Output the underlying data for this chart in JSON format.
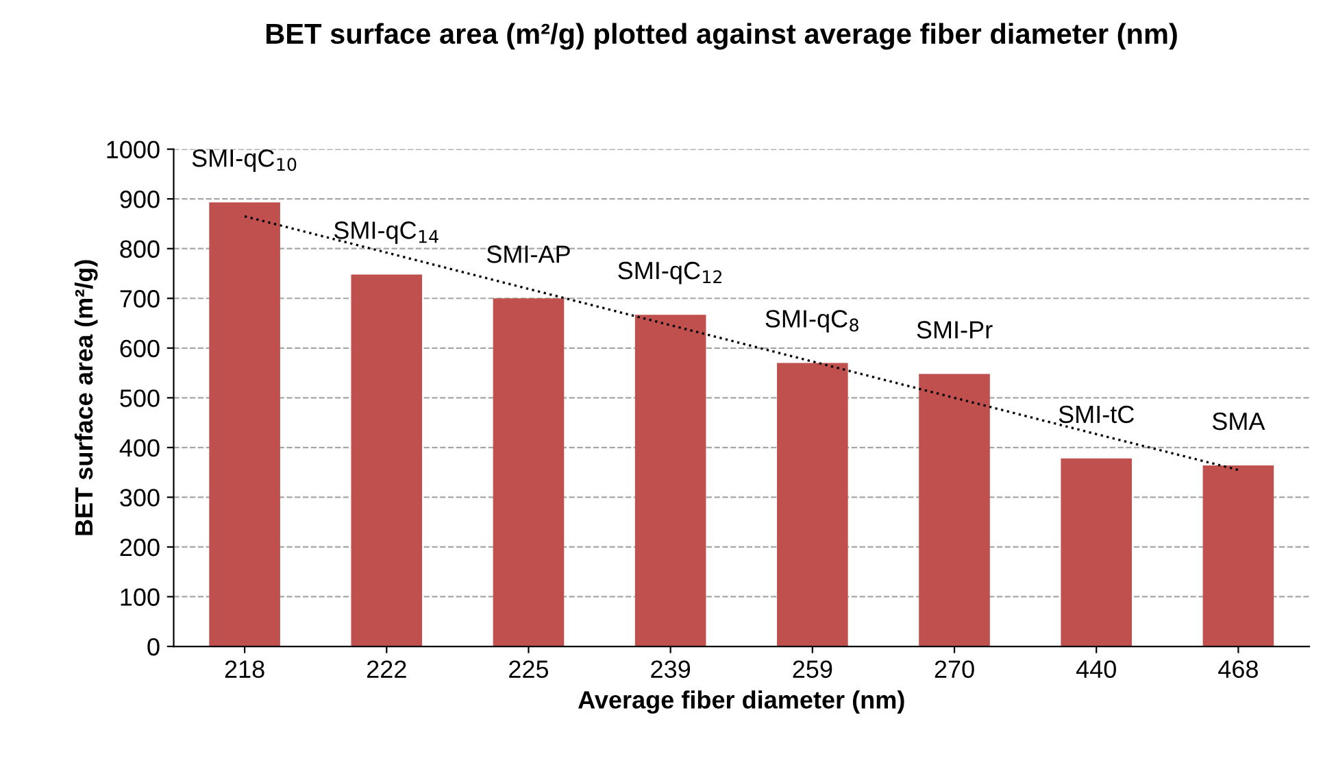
{
  "chart_data": {
    "type": "bar",
    "title": "BET surface area (m²/g) plotted against average fiber diameter (nm)",
    "xlabel": "Average fiber diameter (nm)",
    "ylabel": "BET surface area (m²/g)",
    "categories": [
      "218",
      "222",
      "225",
      "239",
      "259",
      "270",
      "440",
      "468"
    ],
    "series": [
      {
        "color": "#c0504d",
        "values": [
          893,
          748,
          700,
          667,
          570,
          548,
          378,
          364
        ]
      },
      {
        "type": "line",
        "color": "#000000",
        "line_style": "dotted",
        "values": [
          865,
          792,
          719,
          646,
          573,
          500,
          427,
          355
        ]
      }
    ],
    "annotations": [
      {
        "text": "SMI-qC$_{10}$",
        "x": "218",
        "y": 893
      },
      {
        "text": "SMI-qC$_{14}$",
        "x": "222",
        "y": 748
      },
      {
        "text": "SMI-AP",
        "x": "225",
        "y": 700
      },
      {
        "text": "SMI-qC$_{12}$",
        "x": "239",
        "y": 667
      },
      {
        "text": "SMI-qC$_{8}$",
        "x": "259",
        "y": 570
      },
      {
        "text": "SMI-Pr",
        "x": "270",
        "y": 548
      },
      {
        "text": "SMI-tC",
        "x": "440",
        "y": 378
      },
      {
        "text": "SMA",
        "x": "468",
        "y": 364
      }
    ],
    "ylim": [
      0,
      1000
    ],
    "yticks": [
      0,
      100,
      200,
      300,
      400,
      500,
      600,
      700,
      800,
      900,
      1000
    ],
    "grid": "y"
  }
}
